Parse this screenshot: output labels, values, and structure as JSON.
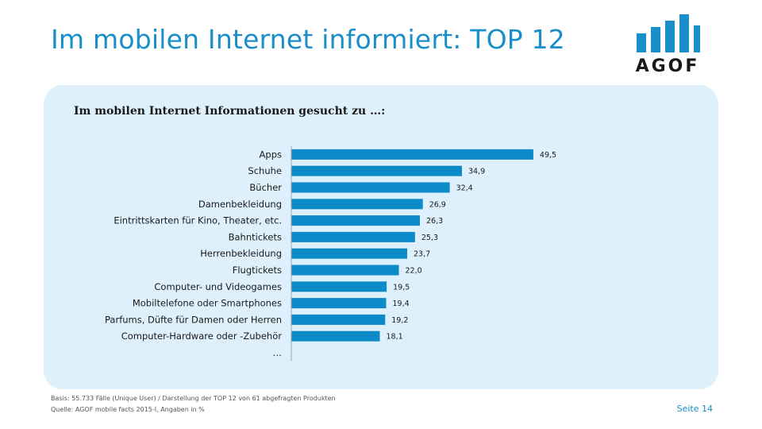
{
  "header": {
    "title": "Im mobilen Internet informiert: TOP 12",
    "logo_text": "AGOF"
  },
  "colors": {
    "accent": "#1a8ec9",
    "bar": "#0d8ac8",
    "panel": "#ddf0fb"
  },
  "chart_data": {
    "type": "bar",
    "orientation": "horizontal",
    "title": "Im mobilen Internet Informationen gesucht zu …:",
    "categories": [
      "Apps",
      "Schuhe",
      "Bücher",
      "Damenbekleidung",
      "Eintrittskarten für Kino, Theater, etc.",
      "Bahntickets",
      "Herrenbekleidung",
      "Flugtickets",
      "Computer- und Videogames",
      "Mobiltelefone oder Smartphones",
      "Parfums, Düfte für Damen oder Herren",
      "Computer-Hardware oder -Zubehör",
      "…"
    ],
    "values": [
      49.5,
      34.9,
      32.4,
      26.9,
      26.3,
      25.3,
      23.7,
      22.0,
      19.5,
      19.4,
      19.2,
      18.1,
      null
    ],
    "value_labels": [
      "49,5",
      "34,9",
      "32,4",
      "26,9",
      "26,3",
      "25,3",
      "23,7",
      "22,0",
      "19,5",
      "19,4",
      "19,2",
      "18,1",
      ""
    ],
    "xlim": [
      0,
      50
    ],
    "grid": false,
    "legend": "none"
  },
  "footer": {
    "basis": "Basis: 55.733 Fälle (Unique User) / Darstellung der TOP 12 von 61 abgefragten Produkten",
    "source": "Quelle: AGOF mobile facts 2015-I, Angaben in %",
    "page": "Seite 14"
  }
}
